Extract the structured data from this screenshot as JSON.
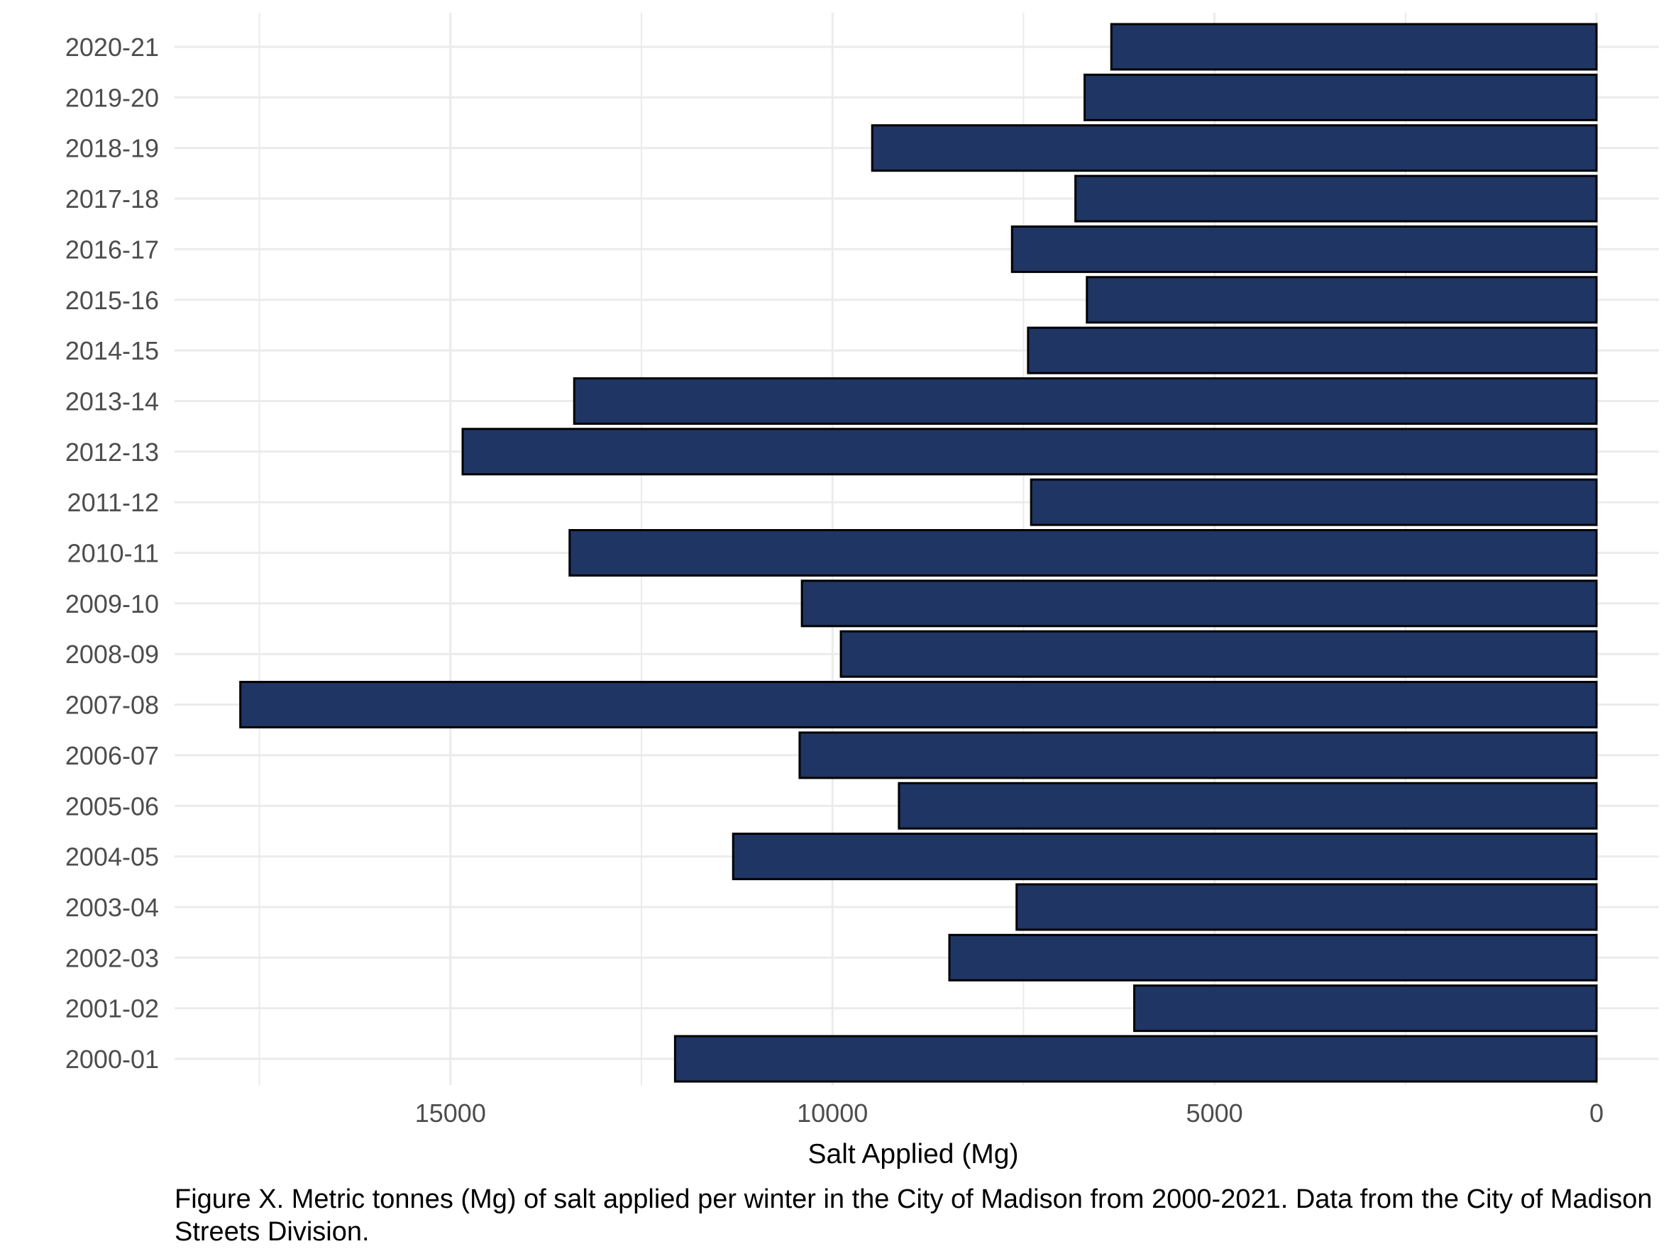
{
  "chart_data": {
    "type": "bar",
    "orientation": "horizontal",
    "x_reversed": true,
    "categories": [
      "2020-21",
      "2019-20",
      "2018-19",
      "2017-18",
      "2016-17",
      "2015-16",
      "2014-15",
      "2013-14",
      "2012-13",
      "2011-12",
      "2010-11",
      "2009-10",
      "2008-09",
      "2007-08",
      "2006-07",
      "2005-06",
      "2004-05",
      "2003-04",
      "2002-03",
      "2001-02",
      "2000-01"
    ],
    "values": [
      6350,
      6700,
      9480,
      6820,
      7650,
      6670,
      7440,
      13380,
      14840,
      7400,
      13440,
      10400,
      9890,
      17750,
      10430,
      9130,
      11300,
      7590,
      8470,
      6050,
      12060
    ],
    "xlabel": "Salt Applied (Mg)",
    "ylabel": "",
    "xlim": [
      0,
      18550
    ],
    "xticks": [
      15000,
      10000,
      5000,
      0
    ],
    "xtick_labels": [
      "15000",
      "10000",
      "5000",
      "0"
    ],
    "grid": true,
    "bar_fill": "#1f3564",
    "bar_stroke": "#000000",
    "grid_color": "#ebebeb"
  },
  "caption": "Figure X. Metric tonnes (Mg) of salt applied per winter in the City of Madison from 2000-2021. Data from the City of Madison Streets Division."
}
